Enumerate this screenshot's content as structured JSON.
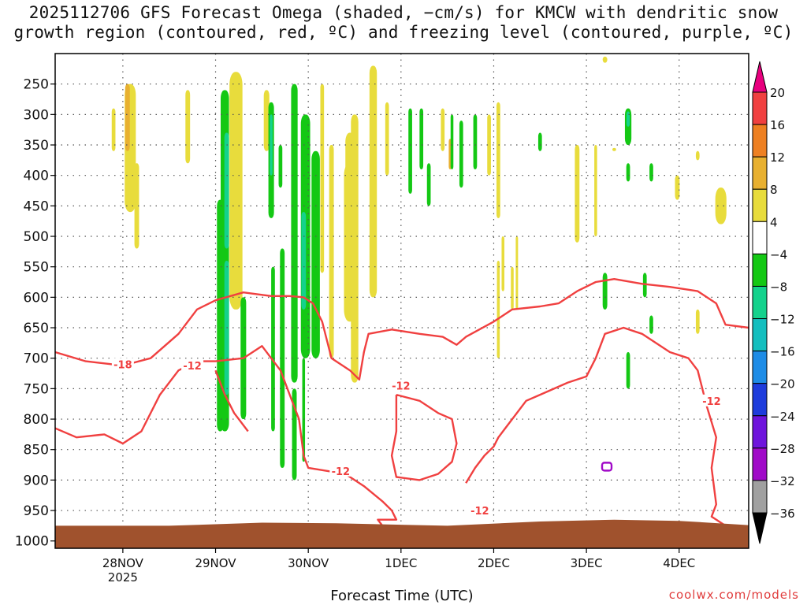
{
  "title": {
    "line1": "2025112706 GFS Forecast Omega (shaded, −cm/s) for KMCW with dendritic snow",
    "line2": "growth region (contoured, red, ºC) and freezing level (contoured, purple, ºC)"
  },
  "credit": "coolwx.com/models",
  "chart_data": {
    "type": "heatmap",
    "title": "2025112706 GFS Forecast Omega (shaded, −cm/s) for KMCW with dendritic snow growth region (contoured, red, ºC) and freezing level (contoured, purple, ºC)",
    "xlabel": "Forecast Time (UTC)",
    "ylabel": "",
    "x_ticks": [
      {
        "label": "28NOV",
        "sub": "2025",
        "day": 1
      },
      {
        "label": "29NOV",
        "sub": "",
        "day": 2
      },
      {
        "label": "30NOV",
        "sub": "",
        "day": 3
      },
      {
        "label": "1DEC",
        "sub": "",
        "day": 4
      },
      {
        "label": "2DEC",
        "sub": "",
        "day": 5
      },
      {
        "label": "3DEC",
        "sub": "",
        "day": 6
      },
      {
        "label": "4DEC",
        "sub": "",
        "day": 7
      }
    ],
    "x_range_days": [
      0.27,
      7.75
    ],
    "y_levels": [
      250,
      300,
      350,
      400,
      450,
      500,
      550,
      600,
      650,
      700,
      750,
      800,
      850,
      900,
      950,
      1000
    ],
    "y_range": [
      200,
      1012
    ],
    "y_inverted": true,
    "grid": true,
    "surface_fill_color": "#a0522d",
    "colorbar": {
      "labels": [
        "20",
        "16",
        "12",
        "8",
        "4",
        "−4",
        "−8",
        "−12",
        "−16",
        "−20",
        "−24",
        "−28",
        "−32",
        "−36"
      ],
      "colors": [
        "#e8007e",
        "#f04040",
        "#ee8022",
        "#e8b030",
        "#e8dc3c",
        "#ffffff",
        "#14c814",
        "#14d28c",
        "#14bebe",
        "#1e8ce6",
        "#1e3cdc",
        "#6e14dc",
        "#a00ac8",
        "#a0a0a0",
        "#000000"
      ]
    },
    "omega_regions": [
      {
        "cx": 1.08,
        "p0": 250,
        "p1": 460,
        "w": 0.12,
        "c": "#e8dc3c"
      },
      {
        "cx": 1.05,
        "p0": 250,
        "p1": 360,
        "w": 0.05,
        "c": "#e8b030"
      },
      {
        "cx": 0.9,
        "p0": 290,
        "p1": 360,
        "w": 0.04,
        "c": "#e8dc3c"
      },
      {
        "cx": 1.15,
        "p0": 380,
        "p1": 520,
        "w": 0.05,
        "c": "#e8dc3c"
      },
      {
        "cx": 1.7,
        "p0": 260,
        "p1": 380,
        "w": 0.05,
        "c": "#e8dc3c"
      },
      {
        "cx": 2.22,
        "p0": 230,
        "p1": 620,
        "w": 0.14,
        "c": "#e8dc3c"
      },
      {
        "cx": 2.05,
        "p0": 440,
        "p1": 820,
        "w": 0.07,
        "c": "#14c814"
      },
      {
        "cx": 2.1,
        "p0": 260,
        "p1": 820,
        "w": 0.09,
        "c": "#14c814"
      },
      {
        "cx": 2.12,
        "p0": 330,
        "p1": 520,
        "w": 0.05,
        "c": "#14d28c"
      },
      {
        "cx": 2.12,
        "p0": 540,
        "p1": 760,
        "w": 0.05,
        "c": "#14d28c"
      },
      {
        "cx": 2.3,
        "p0": 600,
        "p1": 800,
        "w": 0.06,
        "c": "#14c814"
      },
      {
        "cx": 2.55,
        "p0": 260,
        "p1": 360,
        "w": 0.06,
        "c": "#e8dc3c"
      },
      {
        "cx": 2.6,
        "p0": 280,
        "p1": 470,
        "w": 0.06,
        "c": "#14c814"
      },
      {
        "cx": 2.6,
        "p0": 300,
        "p1": 400,
        "w": 0.03,
        "c": "#14d28c"
      },
      {
        "cx": 2.7,
        "p0": 350,
        "p1": 420,
        "w": 0.04,
        "c": "#14c814"
      },
      {
        "cx": 2.62,
        "p0": 550,
        "p1": 820,
        "w": 0.04,
        "c": "#14c814"
      },
      {
        "cx": 2.85,
        "p0": 250,
        "p1": 740,
        "w": 0.07,
        "c": "#14c814"
      },
      {
        "cx": 2.72,
        "p0": 520,
        "p1": 880,
        "w": 0.05,
        "c": "#14c814"
      },
      {
        "cx": 2.97,
        "p0": 300,
        "p1": 700,
        "w": 0.1,
        "c": "#14c814"
      },
      {
        "cx": 2.95,
        "p0": 460,
        "p1": 620,
        "w": 0.05,
        "c": "#14d28c"
      },
      {
        "cx": 3.08,
        "p0": 360,
        "p1": 700,
        "w": 0.09,
        "c": "#14c814"
      },
      {
        "cx": 2.85,
        "p0": 750,
        "p1": 900,
        "w": 0.05,
        "c": "#14c814"
      },
      {
        "cx": 2.95,
        "p0": 700,
        "p1": 870,
        "w": 0.03,
        "c": "#14c814"
      },
      {
        "cx": 3.15,
        "p0": 250,
        "p1": 560,
        "w": 0.04,
        "c": "#e8dc3c"
      },
      {
        "cx": 3.25,
        "p0": 350,
        "p1": 700,
        "w": 0.05,
        "c": "#e8dc3c"
      },
      {
        "cx": 3.45,
        "p0": 330,
        "p1": 580,
        "w": 0.1,
        "c": "#e8dc3c"
      },
      {
        "cx": 3.45,
        "p0": 380,
        "p1": 640,
        "w": 0.13,
        "c": "#e8dc3c"
      },
      {
        "cx": 3.5,
        "p0": 300,
        "p1": 740,
        "w": 0.08,
        "c": "#e8dc3c"
      },
      {
        "cx": 3.7,
        "p0": 220,
        "p1": 600,
        "w": 0.08,
        "c": "#e8dc3c"
      },
      {
        "cx": 3.85,
        "p0": 280,
        "p1": 400,
        "w": 0.04,
        "c": "#e8dc3c"
      },
      {
        "cx": 4.1,
        "p0": 290,
        "p1": 430,
        "w": 0.04,
        "c": "#14c814"
      },
      {
        "cx": 4.22,
        "p0": 290,
        "p1": 390,
        "w": 0.04,
        "c": "#14c814"
      },
      {
        "cx": 4.3,
        "p0": 380,
        "p1": 450,
        "w": 0.04,
        "c": "#14c814"
      },
      {
        "cx": 4.45,
        "p0": 290,
        "p1": 360,
        "w": 0.04,
        "c": "#e8dc3c"
      },
      {
        "cx": 4.53,
        "p0": 340,
        "p1": 390,
        "w": 0.03,
        "c": "#e8b030"
      },
      {
        "cx": 4.55,
        "p0": 300,
        "p1": 390,
        "w": 0.03,
        "c": "#14c814"
      },
      {
        "cx": 4.65,
        "p0": 310,
        "p1": 420,
        "w": 0.04,
        "c": "#14c814"
      },
      {
        "cx": 4.8,
        "p0": 300,
        "p1": 390,
        "w": 0.04,
        "c": "#14c814"
      },
      {
        "cx": 4.95,
        "p0": 300,
        "p1": 400,
        "w": 0.04,
        "c": "#e8dc3c"
      },
      {
        "cx": 5.05,
        "p0": 540,
        "p1": 700,
        "w": 0.03,
        "c": "#e8dc3c"
      },
      {
        "cx": 5.1,
        "p0": 500,
        "p1": 590,
        "w": 0.03,
        "c": "#e8dc3c"
      },
      {
        "cx": 5.05,
        "p0": 280,
        "p1": 470,
        "w": 0.04,
        "c": "#e8dc3c"
      },
      {
        "cx": 5.2,
        "p0": 550,
        "p1": 620,
        "w": 0.03,
        "c": "#e8dc3c"
      },
      {
        "cx": 5.25,
        "p0": 500,
        "p1": 620,
        "w": 0.025,
        "c": "#e8dc3c"
      },
      {
        "cx": 5.5,
        "p0": 330,
        "p1": 360,
        "w": 0.04,
        "c": "#14c814"
      },
      {
        "cx": 5.9,
        "p0": 350,
        "p1": 510,
        "w": 0.05,
        "c": "#e8dc3c"
      },
      {
        "cx": 6.1,
        "p0": 350,
        "p1": 500,
        "w": 0.03,
        "c": "#e8dc3c"
      },
      {
        "cx": 6.2,
        "p0": 205,
        "p1": 215,
        "w": 0.05,
        "c": "#e8dc3c"
      },
      {
        "cx": 6.2,
        "p0": 560,
        "p1": 620,
        "w": 0.05,
        "c": "#14c814"
      },
      {
        "cx": 6.45,
        "p0": 290,
        "p1": 350,
        "w": 0.07,
        "c": "#14c814"
      },
      {
        "cx": 6.45,
        "p0": 295,
        "p1": 320,
        "w": 0.035,
        "c": "#14d28c"
      },
      {
        "cx": 6.3,
        "p0": 355,
        "p1": 360,
        "w": 0.04,
        "c": "#e8dc3c"
      },
      {
        "cx": 6.45,
        "p0": 380,
        "p1": 410,
        "w": 0.04,
        "c": "#14c814"
      },
      {
        "cx": 6.63,
        "p0": 560,
        "p1": 600,
        "w": 0.04,
        "c": "#14c814"
      },
      {
        "cx": 6.7,
        "p0": 380,
        "p1": 410,
        "w": 0.04,
        "c": "#14c814"
      },
      {
        "cx": 6.7,
        "p0": 630,
        "p1": 660,
        "w": 0.04,
        "c": "#14c814"
      },
      {
        "cx": 6.45,
        "p0": 690,
        "p1": 750,
        "w": 0.04,
        "c": "#14c814"
      },
      {
        "cx": 6.98,
        "p0": 400,
        "p1": 440,
        "w": 0.05,
        "c": "#e8dc3c"
      },
      {
        "cx": 7.2,
        "p0": 360,
        "p1": 375,
        "w": 0.04,
        "c": "#e8dc3c"
      },
      {
        "cx": 7.2,
        "p0": 620,
        "p1": 660,
        "w": 0.04,
        "c": "#e8dc3c"
      },
      {
        "cx": 7.45,
        "p0": 420,
        "p1": 480,
        "w": 0.12,
        "c": "#e8dc3c"
      }
    ],
    "snow_growth_contours": [
      {
        "label": "-18",
        "label_x": 1.0,
        "label_p": 710,
        "pts": [
          [
            0.27,
            690
          ],
          [
            0.6,
            705
          ],
          [
            1.0,
            712
          ],
          [
            1.3,
            700
          ],
          [
            1.6,
            660
          ],
          [
            1.8,
            620
          ],
          [
            2.0,
            605
          ],
          [
            2.3,
            592
          ],
          [
            2.6,
            598
          ],
          [
            2.8,
            598
          ],
          [
            2.95,
            600
          ],
          [
            3.05,
            610
          ],
          [
            3.15,
            640
          ],
          [
            3.2,
            670
          ],
          [
            3.25,
            700
          ],
          [
            3.45,
            720
          ],
          [
            3.55,
            735
          ],
          [
            3.6,
            690
          ],
          [
            3.65,
            660
          ],
          [
            3.9,
            653
          ],
          [
            4.2,
            660
          ],
          [
            4.45,
            665
          ],
          [
            4.6,
            678
          ],
          [
            4.7,
            665
          ],
          [
            5.0,
            640
          ],
          [
            5.2,
            620
          ],
          [
            5.5,
            615
          ],
          [
            5.7,
            610
          ],
          [
            5.9,
            590
          ],
          [
            6.1,
            575
          ],
          [
            6.3,
            570
          ],
          [
            6.6,
            578
          ],
          [
            6.9,
            583
          ],
          [
            7.2,
            590
          ],
          [
            7.4,
            610
          ],
          [
            7.5,
            645
          ],
          [
            7.75,
            650
          ]
        ]
      },
      {
        "label": "-12",
        "label_x": 1.75,
        "label_p": 712,
        "pts": [
          [
            0.27,
            815
          ],
          [
            0.5,
            830
          ],
          [
            0.8,
            825
          ],
          [
            1.0,
            840
          ],
          [
            1.2,
            820
          ],
          [
            1.4,
            760
          ],
          [
            1.6,
            720
          ],
          [
            1.8,
            705
          ],
          [
            2.0,
            705
          ],
          [
            2.3,
            700
          ],
          [
            2.5,
            680
          ],
          [
            2.6,
            700
          ],
          [
            2.7,
            720
          ],
          [
            2.8,
            760
          ],
          [
            2.9,
            800
          ],
          [
            2.95,
            860
          ],
          [
            3.0,
            880
          ],
          [
            3.4,
            890
          ],
          [
            3.6,
            910
          ],
          [
            3.8,
            935
          ],
          [
            3.9,
            950
          ],
          [
            3.95,
            965
          ],
          [
            3.75,
            965
          ],
          [
            3.8,
            975
          ],
          [
            3.75,
            980
          ]
        ]
      },
      {
        "label": "-12",
        "label_x": 3.35,
        "label_p": 885,
        "pts": [
          [
            2.0,
            720
          ],
          [
            2.1,
            760
          ],
          [
            2.2,
            790
          ],
          [
            2.35,
            820
          ]
        ]
      },
      {
        "label": "-12",
        "label_x": 4.0,
        "label_p": 745,
        "pts": [
          [
            3.95,
            760
          ],
          [
            4.2,
            770
          ],
          [
            4.4,
            790
          ],
          [
            4.55,
            800
          ],
          [
            4.6,
            840
          ],
          [
            4.55,
            870
          ],
          [
            4.4,
            890
          ],
          [
            4.2,
            900
          ],
          [
            3.95,
            895
          ],
          [
            3.9,
            860
          ],
          [
            3.95,
            820
          ],
          [
            3.95,
            780
          ],
          [
            3.95,
            760
          ]
        ]
      },
      {
        "label": "-12",
        "label_x": 4.85,
        "label_p": 950,
        "pts": [
          [
            4.7,
            905
          ],
          [
            4.8,
            880
          ],
          [
            4.9,
            860
          ],
          [
            5.0,
            845
          ],
          [
            5.05,
            830
          ],
          [
            5.2,
            800
          ],
          [
            5.35,
            770
          ],
          [
            5.5,
            760
          ],
          [
            5.8,
            740
          ],
          [
            6.0,
            730
          ],
          [
            6.1,
            700
          ],
          [
            6.2,
            660
          ],
          [
            6.4,
            650
          ],
          [
            6.6,
            660
          ],
          [
            6.9,
            690
          ],
          [
            7.1,
            700
          ],
          [
            7.2,
            720
          ],
          [
            7.3,
            780
          ],
          [
            7.4,
            830
          ],
          [
            7.35,
            880
          ],
          [
            7.4,
            940
          ],
          [
            7.35,
            960
          ],
          [
            7.5,
            975
          ]
        ]
      },
      {
        "label": "-12",
        "label_x": 7.35,
        "label_p": 770,
        "pts": [
          [
            5.3,
            985
          ],
          [
            5.6,
            975
          ],
          [
            5.8,
            975
          ],
          [
            5.5,
            980
          ]
        ]
      }
    ],
    "freezing_level_contours": [
      {
        "x": 6.22,
        "p": 878
      }
    ]
  }
}
